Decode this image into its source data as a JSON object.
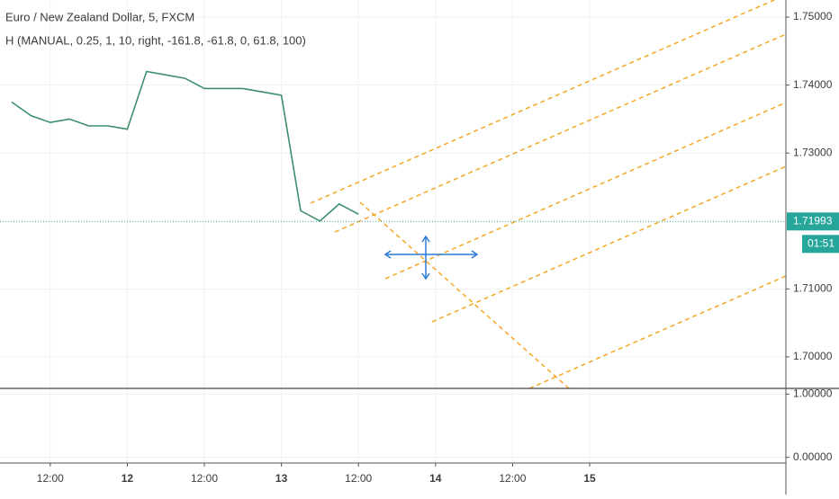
{
  "chart_data": [
    {
      "type": "line",
      "title": "Euro / New Zealand Dollar, 5, FXCM",
      "subtitle": "H (MANUAL, 0.25, 1, 10, right, -161.8, -61.8, 0, 61.8, 100)",
      "categories": [
        null,
        null,
        "12:00",
        null,
        null,
        null,
        "12",
        null,
        null,
        null,
        "12:00",
        null,
        null,
        null,
        "13",
        null,
        null,
        null,
        "12:00",
        null,
        null,
        null,
        "14",
        null,
        null,
        null,
        "12:00",
        null,
        null,
        null,
        "15",
        null,
        null,
        null,
        null,
        null,
        null,
        null,
        null,
        null,
        null
      ],
      "values": [
        1.7375,
        1.7355,
        1.7345,
        1.735,
        1.734,
        1.734,
        1.7335,
        1.742,
        1.7415,
        1.741,
        1.7395,
        1.7395,
        1.7395,
        1.739,
        1.7385,
        1.7215,
        1.72,
        1.7225,
        1.721,
        null,
        null,
        null,
        null,
        null,
        null,
        null,
        null,
        null,
        null,
        null,
        null,
        null,
        null,
        null,
        null,
        null,
        null,
        null,
        null,
        null,
        null
      ],
      "color": "#3c8f6a",
      "ylim": [
        1.69536,
        1.75252
      ],
      "yticks": [
        {
          "value": 1.75,
          "label": "1.75000"
        },
        {
          "value": 1.74,
          "label": "1.74000"
        },
        {
          "value": 1.73,
          "label": "1.73000"
        },
        {
          "value": 1.71,
          "label": "1.71000"
        },
        {
          "value": 1.7,
          "label": "1.70000"
        }
      ],
      "grid": true,
      "current_price": 1.71993,
      "current_price_color": "#26a69a",
      "countdown": "01:51"
    },
    {
      "type": "line",
      "ylim": [
        -0.09,
        1.09
      ],
      "yticks": [
        {
          "value": 1,
          "label": "1.00000"
        },
        {
          "value": 0,
          "label": "0.00000"
        }
      ],
      "grid": true
    }
  ]
}
